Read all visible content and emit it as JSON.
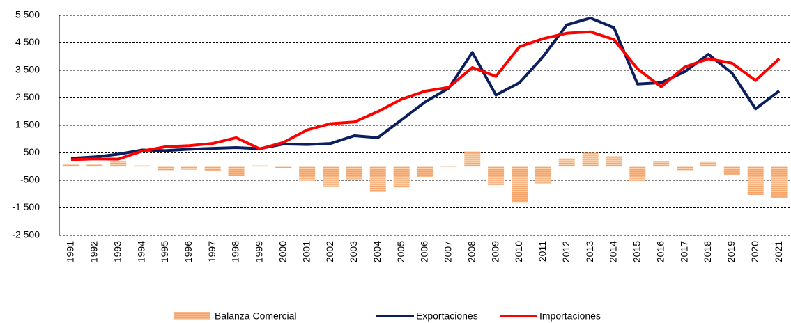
{
  "chart_data": {
    "type": "bar-line",
    "categories": [
      "1991",
      "1992",
      "1993",
      "1994",
      "1995",
      "1996",
      "1997",
      "1998",
      "1999",
      "2000",
      "2001",
      "2002",
      "2003",
      "2004",
      "2005",
      "2006",
      "2007",
      "2008",
      "2009",
      "2010",
      "2011",
      "2012",
      "2013",
      "2014",
      "2015",
      "2016",
      "2017",
      "2018",
      "2019",
      "2020",
      "2021"
    ],
    "series": [
      {
        "name": "Balanza Comercial",
        "kind": "bar",
        "color": "#f5a46a",
        "values": [
          100,
          100,
          180,
          40,
          -130,
          -110,
          -170,
          -350,
          40,
          -60,
          -520,
          -720,
          -500,
          -930,
          -760,
          -370,
          -20,
          550,
          -680,
          -1300,
          -630,
          300,
          500,
          380,
          -530,
          180,
          -130,
          170,
          -320,
          -1030,
          -1150
        ]
      },
      {
        "name": "Exportaciones",
        "kind": "line",
        "color": "#0b1f5e",
        "values": [
          300,
          350,
          450,
          600,
          580,
          630,
          660,
          690,
          650,
          820,
          800,
          840,
          1120,
          1050,
          1700,
          2350,
          2850,
          4150,
          2600,
          3050,
          4000,
          5150,
          5400,
          5050,
          3000,
          3050,
          3450,
          4080,
          3400,
          2100,
          2750
        ]
      },
      {
        "name": "Importaciones",
        "kind": "line",
        "color": "#ff0000",
        "values": [
          250,
          280,
          270,
          560,
          720,
          760,
          840,
          1050,
          640,
          880,
          1330,
          1560,
          1620,
          2000,
          2450,
          2740,
          2880,
          3600,
          3280,
          4360,
          4650,
          4850,
          4900,
          4620,
          3550,
          2900,
          3620,
          3920,
          3760,
          3130,
          3920
        ]
      }
    ],
    "ylim": [
      -2500,
      5500
    ],
    "yticks": [
      {
        "value": -2500,
        "label": "-2 500"
      },
      {
        "value": -1500,
        "label": "-1 500"
      },
      -500,
      500,
      {
        "value": 1500,
        "label": "1 500"
      },
      {
        "value": 2500,
        "label": "2 500"
      },
      {
        "value": 3500,
        "label": "3 500"
      },
      {
        "value": 4500,
        "label": "4 500"
      },
      {
        "value": 5500,
        "label": "5 500"
      }
    ],
    "grid": true,
    "legend": "bottom"
  }
}
